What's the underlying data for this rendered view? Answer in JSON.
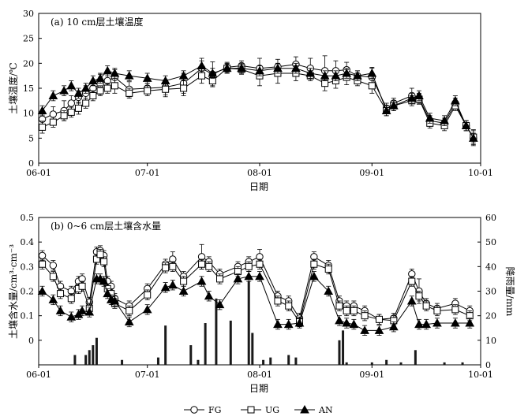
{
  "colors": {
    "axis": "#000000",
    "marker_fill_open": "#ffffff",
    "marker_fill_solid": "#000000",
    "bars": "#1a1a1a"
  },
  "legend": [
    {
      "name": "FG",
      "marker": "circle-open"
    },
    {
      "name": "UG",
      "marker": "square-open"
    },
    {
      "name": "AN",
      "marker": "triangle-filled"
    }
  ],
  "chart_data": [
    {
      "type": "line",
      "title": "(a) 10 cm层土壤温度",
      "xlabel": "日期",
      "ylabel": "土壤温度/℃",
      "xticks": [
        "06-01",
        "07-01",
        "08-01",
        "09-01",
        "10-01"
      ],
      "xlim": [
        0,
        122
      ],
      "ylim": [
        0,
        30
      ],
      "yticks": [
        "0",
        "5",
        "10",
        "15",
        "20",
        "25",
        "30"
      ],
      "grid": false,
      "series": [
        {
          "name": "FG",
          "marker": "circle-open",
          "x": [
            1,
            4,
            7,
            9,
            11,
            13,
            15,
            17,
            19,
            21,
            25,
            30,
            35,
            40,
            45,
            48,
            52,
            56,
            61,
            66,
            71,
            75,
            79,
            82,
            85,
            88,
            92,
            96,
            98,
            103,
            105,
            108,
            112,
            115,
            118,
            120
          ],
          "y": [
            8.8,
            9.8,
            10.5,
            12.0,
            13.2,
            14.0,
            15.0,
            15.8,
            16.5,
            17.2,
            14.8,
            15.0,
            15.2,
            16.0,
            19.0,
            17.8,
            19.2,
            19.5,
            19.0,
            19.3,
            19.8,
            19.0,
            18.5,
            18.5,
            18.7,
            17.5,
            17.2,
            11.0,
            12.0,
            13.5,
            13.0,
            8.5,
            8.0,
            12.0,
            7.5,
            5.0
          ],
          "err": [
            1.0,
            1.5,
            2.0,
            1.5,
            1.2,
            1.5,
            1.5,
            2.0,
            1.5,
            1.5,
            1.5,
            1.0,
            1.5,
            2.0,
            2.0,
            2.5,
            1.0,
            1.0,
            2.0,
            1.5,
            1.5,
            2.0,
            3.0,
            2.0,
            1.5,
            1.0,
            2.0,
            1.0,
            1.0,
            1.5,
            1.0,
            1.0,
            1.0,
            1.0,
            1.0,
            1.5
          ]
        },
        {
          "name": "UG",
          "marker": "square-open",
          "x": [
            1,
            4,
            7,
            9,
            11,
            13,
            15,
            17,
            19,
            21,
            25,
            30,
            35,
            40,
            45,
            48,
            52,
            56,
            61,
            66,
            71,
            75,
            79,
            82,
            85,
            88,
            92,
            96,
            98,
            103,
            105,
            108,
            112,
            115,
            118,
            120
          ],
          "y": [
            7.2,
            8.2,
            9.5,
            10.2,
            11.0,
            12.0,
            13.5,
            14.5,
            15.0,
            15.5,
            14.0,
            14.5,
            14.8,
            15.0,
            17.5,
            16.5,
            19.0,
            18.8,
            17.5,
            18.0,
            18.0,
            17.5,
            16.0,
            16.5,
            17.2,
            16.5,
            15.5,
            10.5,
            11.5,
            12.5,
            12.8,
            8.0,
            7.5,
            11.5,
            7.5,
            5.2
          ],
          "err": [
            1.2,
            1.0,
            1.0,
            1.0,
            1.2,
            1.0,
            1.0,
            1.0,
            1.0,
            1.5,
            1.0,
            1.0,
            1.5,
            1.5,
            1.5,
            1.0,
            1.0,
            1.0,
            2.0,
            2.0,
            1.5,
            1.0,
            1.5,
            1.5,
            1.5,
            1.0,
            1.5,
            1.0,
            1.0,
            1.0,
            1.0,
            1.0,
            1.0,
            1.0,
            1.0,
            1.5
          ]
        },
        {
          "name": "AN",
          "marker": "triangle-filled",
          "x": [
            1,
            4,
            7,
            9,
            11,
            13,
            15,
            17,
            19,
            21,
            25,
            30,
            35,
            40,
            45,
            48,
            52,
            56,
            61,
            66,
            71,
            75,
            79,
            82,
            85,
            88,
            92,
            96,
            98,
            103,
            105,
            108,
            112,
            115,
            118,
            120
          ],
          "y": [
            10.5,
            13.5,
            14.5,
            15.5,
            14.0,
            15.0,
            16.5,
            17.0,
            18.5,
            18.0,
            17.5,
            17.0,
            16.5,
            17.5,
            19.5,
            18.0,
            19.0,
            19.0,
            18.5,
            19.0,
            19.0,
            18.0,
            17.5,
            17.5,
            18.0,
            17.5,
            18.0,
            10.5,
            11.5,
            13.0,
            13.5,
            9.0,
            8.5,
            12.5,
            7.5,
            5.0
          ],
          "err": [
            1.0,
            1.0,
            1.0,
            1.0,
            1.0,
            1.0,
            1.0,
            1.0,
            1.0,
            1.0,
            1.0,
            1.0,
            1.0,
            1.0,
            1.0,
            1.0,
            1.0,
            1.0,
            1.0,
            1.0,
            1.0,
            1.0,
            1.0,
            1.0,
            1.0,
            1.0,
            1.0,
            1.0,
            1.0,
            1.0,
            1.0,
            1.0,
            1.0,
            1.0,
            1.0,
            1.0
          ]
        }
      ]
    },
    {
      "type": "line",
      "title": "(b) 0~6 cm层土壤含水量",
      "xlabel": "日期",
      "ylabel": "土壤含水量/cm³·cm⁻³",
      "y2label": "降雨量/mm",
      "xticks": [
        "06-01",
        "07-01",
        "08-01",
        "09-01",
        "10-01"
      ],
      "xlim": [
        0,
        122
      ],
      "ylim": [
        -0.1,
        0.5
      ],
      "yticks": [
        "0",
        "0.1",
        "0.2",
        "0.3",
        "0.4",
        "0.5"
      ],
      "y2lim": [
        0,
        60
      ],
      "y2ticks": [
        "0",
        "10",
        "20",
        "30",
        "40",
        "50",
        "60"
      ],
      "grid": false,
      "series": [
        {
          "name": "FG",
          "marker": "circle-open",
          "x": [
            1,
            4,
            6,
            9,
            11,
            12,
            14,
            16,
            17,
            18,
            19,
            20,
            21,
            25,
            30,
            35,
            37,
            40,
            45,
            47,
            50,
            55,
            58,
            61,
            66,
            69,
            72,
            76,
            80,
            83,
            85,
            87,
            90,
            94,
            98,
            103,
            105,
            107,
            110,
            115,
            119
          ],
          "y": [
            0.345,
            0.305,
            0.22,
            0.2,
            0.24,
            0.25,
            0.155,
            0.36,
            0.365,
            0.345,
            0.24,
            0.22,
            0.17,
            0.14,
            0.21,
            0.31,
            0.33,
            0.26,
            0.34,
            0.32,
            0.27,
            0.3,
            0.32,
            0.34,
            0.18,
            0.16,
            0.09,
            0.34,
            0.305,
            0.16,
            0.14,
            0.14,
            0.12,
            0.085,
            0.09,
            0.27,
            0.2,
            0.15,
            0.13,
            0.15,
            0.12
          ],
          "err": [
            0.02,
            0.02,
            0.02,
            0.02,
            0.02,
            0.02,
            0.02,
            0.02,
            0.02,
            0.02,
            0.02,
            0.02,
            0.02,
            0.02,
            0.02,
            0.02,
            0.03,
            0.02,
            0.05,
            0.02,
            0.02,
            0.02,
            0.02,
            0.03,
            0.02,
            0.02,
            0.02,
            0.02,
            0.02,
            0.02,
            0.02,
            0.02,
            0.02,
            0.02,
            0.02,
            0.02,
            0.05,
            0.02,
            0.02,
            0.02,
            0.02
          ]
        },
        {
          "name": "UG",
          "marker": "square-open",
          "x": [
            1,
            4,
            6,
            9,
            11,
            12,
            14,
            16,
            17,
            18,
            19,
            20,
            21,
            25,
            30,
            35,
            37,
            40,
            45,
            47,
            50,
            55,
            58,
            61,
            66,
            69,
            72,
            76,
            80,
            83,
            85,
            87,
            90,
            94,
            98,
            103,
            105,
            107,
            110,
            115,
            119
          ],
          "y": [
            0.31,
            0.26,
            0.19,
            0.17,
            0.21,
            0.22,
            0.13,
            0.33,
            0.35,
            0.32,
            0.21,
            0.19,
            0.15,
            0.12,
            0.185,
            0.295,
            0.3,
            0.24,
            0.31,
            0.3,
            0.25,
            0.28,
            0.3,
            0.31,
            0.16,
            0.14,
            0.075,
            0.31,
            0.29,
            0.14,
            0.12,
            0.12,
            0.1,
            0.085,
            0.08,
            0.24,
            0.18,
            0.14,
            0.12,
            0.125,
            0.1
          ],
          "err": [
            0.02,
            0.02,
            0.02,
            0.02,
            0.02,
            0.02,
            0.02,
            0.02,
            0.02,
            0.02,
            0.02,
            0.02,
            0.02,
            0.02,
            0.02,
            0.02,
            0.02,
            0.02,
            0.02,
            0.02,
            0.02,
            0.02,
            0.02,
            0.02,
            0.02,
            0.02,
            0.02,
            0.02,
            0.02,
            0.02,
            0.02,
            0.02,
            0.02,
            0.02,
            0.02,
            0.02,
            0.02,
            0.02,
            0.02,
            0.02,
            0.02
          ]
        },
        {
          "name": "AN",
          "marker": "triangle-filled",
          "x": [
            1,
            4,
            6,
            9,
            11,
            12,
            14,
            16,
            17,
            18,
            19,
            20,
            21,
            25,
            30,
            35,
            37,
            40,
            45,
            47,
            50,
            55,
            58,
            61,
            66,
            69,
            72,
            76,
            80,
            83,
            85,
            87,
            90,
            94,
            98,
            103,
            105,
            107,
            110,
            115,
            119
          ],
          "y": [
            0.2,
            0.165,
            0.12,
            0.095,
            0.105,
            0.12,
            0.115,
            0.25,
            0.25,
            0.24,
            0.19,
            0.165,
            0.16,
            0.075,
            0.125,
            0.215,
            0.225,
            0.2,
            0.24,
            0.18,
            0.145,
            0.25,
            0.26,
            0.26,
            0.065,
            0.065,
            0.07,
            0.26,
            0.2,
            0.08,
            0.07,
            0.065,
            0.04,
            0.04,
            0.055,
            0.16,
            0.065,
            0.065,
            0.07,
            0.07,
            0.07
          ],
          "err": [
            0.02,
            0.02,
            0.02,
            0.02,
            0.02,
            0.02,
            0.02,
            0.02,
            0.02,
            0.02,
            0.02,
            0.02,
            0.02,
            0.02,
            0.02,
            0.02,
            0.02,
            0.02,
            0.02,
            0.02,
            0.02,
            0.02,
            0.02,
            0.02,
            0.02,
            0.02,
            0.02,
            0.02,
            0.02,
            0.02,
            0.02,
            0.02,
            0.02,
            0.02,
            0.02,
            0.02,
            0.02,
            0.02,
            0.02,
            0.02,
            0.02
          ]
        },
        {
          "name": "降雨量",
          "type": "bar",
          "axis": "right",
          "x": [
            10,
            13,
            14,
            15,
            16,
            23,
            33,
            35,
            42,
            44,
            46,
            49,
            53,
            58,
            59,
            62,
            64,
            69,
            71,
            83,
            84,
            85,
            92,
            96,
            100,
            104,
            112,
            117
          ],
          "values": [
            4,
            4,
            6,
            8,
            11,
            2,
            3,
            16,
            8,
            2,
            17,
            27,
            18,
            34,
            13,
            2,
            3,
            4,
            3,
            10,
            14,
            1,
            1,
            2,
            1,
            6,
            1,
            1
          ]
        }
      ]
    }
  ]
}
